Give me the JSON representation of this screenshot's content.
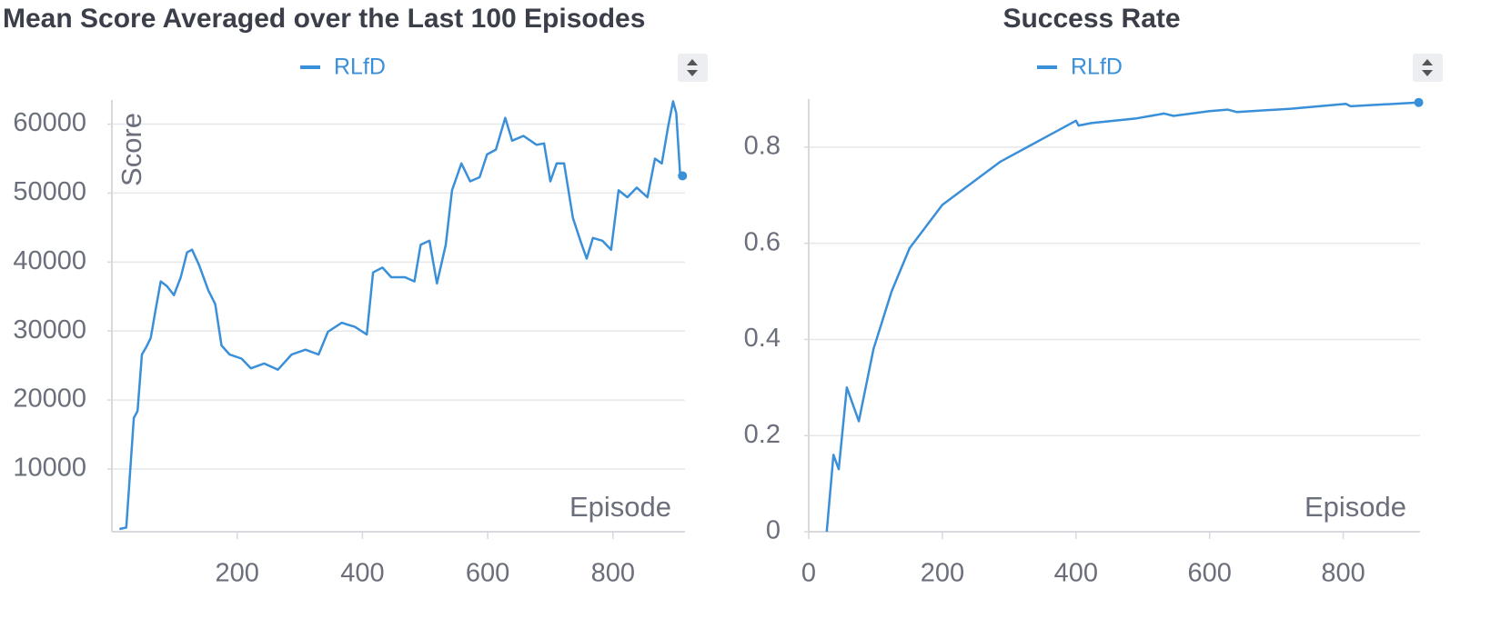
{
  "chart_data": [
    {
      "type": "line",
      "title": "Mean Score Averaged over the Last 100 Episodes",
      "x_label": "Episode",
      "y_label": "Score",
      "x": [
        12,
        23,
        29,
        35,
        41,
        48,
        55,
        62,
        70,
        78,
        88,
        99,
        110,
        120,
        128,
        139,
        154,
        165,
        175,
        188,
        207,
        222,
        243,
        265,
        287,
        309,
        330,
        345,
        367,
        388,
        407,
        417,
        432,
        446,
        468,
        483,
        493,
        507,
        519,
        533,
        543,
        558,
        572,
        587,
        599,
        613,
        628,
        639,
        657,
        678,
        690,
        700,
        710,
        722,
        736,
        748,
        758,
        768,
        783,
        797,
        809,
        823,
        838,
        855,
        867,
        878,
        888,
        896,
        901,
        907,
        911
      ],
      "series": [
        {
          "name": "RLfD",
          "color": "#3a8fd9",
          "values": [
            1300,
            1500,
            9500,
            17400,
            18400,
            26600,
            27700,
            29000,
            33200,
            37200,
            36500,
            35200,
            37800,
            41400,
            41800,
            39600,
            35900,
            33900,
            27900,
            26600,
            26000,
            24600,
            25300,
            24400,
            26600,
            27300,
            26600,
            29900,
            31200,
            30600,
            29500,
            38500,
            39200,
            37800,
            37800,
            37200,
            42500,
            43100,
            36900,
            42500,
            50400,
            54300,
            51700,
            52300,
            55600,
            56300,
            60900,
            57600,
            58300,
            57000,
            57200,
            51700,
            54300,
            54300,
            46400,
            43100,
            40500,
            43500,
            43100,
            41800,
            50400,
            49400,
            50800,
            49400,
            55000,
            54300,
            59600,
            63300,
            61600,
            53000,
            52500
          ]
        }
      ],
      "xlim": [
        0,
        915
      ],
      "ylim": [
        900,
        63500
      ],
      "xticks": [
        200,
        400,
        600,
        800
      ],
      "yticks": [
        10000,
        20000,
        30000,
        40000,
        50000,
        60000
      ],
      "grid": true
    },
    {
      "type": "line",
      "title": "Success Rate",
      "x_label": "Episode",
      "x": [
        27,
        37,
        45,
        57,
        75,
        97,
        124,
        151,
        200,
        287,
        400,
        404,
        423,
        491,
        532,
        546,
        600,
        627,
        641,
        722,
        804,
        811,
        913
      ],
      "series": [
        {
          "name": "RLfD",
          "color": "#3a8fd9",
          "values": [
            0,
            0.16,
            0.13,
            0.3,
            0.23,
            0.38,
            0.5,
            0.59,
            0.68,
            0.77,
            0.855,
            0.845,
            0.85,
            0.86,
            0.87,
            0.865,
            0.875,
            0.878,
            0.873,
            0.88,
            0.89,
            0.885,
            0.893
          ]
        }
      ],
      "xlim": [
        0,
        915
      ],
      "ylim": [
        0,
        0.9
      ],
      "xticks": [
        0,
        200,
        400,
        600,
        800
      ],
      "yticks": [
        0,
        0.2,
        0.4,
        0.6,
        0.8
      ],
      "grid": true
    }
  ]
}
